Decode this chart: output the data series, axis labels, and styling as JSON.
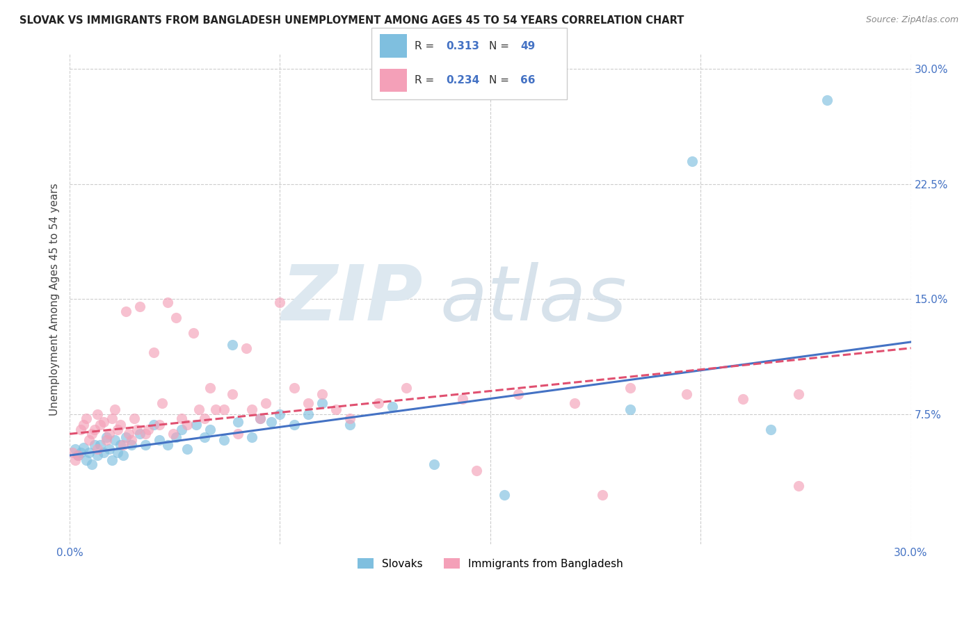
{
  "title": "SLOVAK VS IMMIGRANTS FROM BANGLADESH UNEMPLOYMENT AMONG AGES 45 TO 54 YEARS CORRELATION CHART",
  "source": "Source: ZipAtlas.com",
  "ylabel": "Unemployment Among Ages 45 to 54 years",
  "xlim": [
    0.0,
    0.3
  ],
  "ylim": [
    -0.01,
    0.31
  ],
  "xtick_vals": [
    0.0,
    0.075,
    0.15,
    0.225,
    0.3
  ],
  "xtick_labels": [
    "0.0%",
    "",
    "",
    "",
    "30.0%"
  ],
  "ytick_vals": [
    0.075,
    0.15,
    0.225,
    0.3
  ],
  "ytick_labels": [
    "7.5%",
    "15.0%",
    "22.5%",
    "30.0%"
  ],
  "legend_label1": "Slovaks",
  "legend_label2": "Immigrants from Bangladesh",
  "R1": "0.313",
  "N1": "49",
  "R2": "0.234",
  "N2": "66",
  "color1": "#7fbfdf",
  "color2": "#f4a0b8",
  "line_color1": "#4472c4",
  "line_color2": "#e05070",
  "background_color": "#ffffff",
  "slovaks_x": [
    0.002,
    0.003,
    0.004,
    0.005,
    0.006,
    0.007,
    0.008,
    0.009,
    0.01,
    0.011,
    0.012,
    0.013,
    0.014,
    0.015,
    0.016,
    0.017,
    0.018,
    0.019,
    0.02,
    0.022,
    0.025,
    0.027,
    0.03,
    0.032,
    0.035,
    0.038,
    0.04,
    0.042,
    0.045,
    0.048,
    0.05,
    0.055,
    0.058,
    0.06,
    0.065,
    0.068,
    0.072,
    0.075,
    0.08,
    0.085,
    0.09,
    0.1,
    0.115,
    0.13,
    0.155,
    0.2,
    0.222,
    0.25,
    0.27
  ],
  "slovaks_y": [
    0.052,
    0.048,
    0.05,
    0.053,
    0.045,
    0.05,
    0.042,
    0.055,
    0.048,
    0.055,
    0.05,
    0.06,
    0.052,
    0.045,
    0.058,
    0.05,
    0.055,
    0.048,
    0.06,
    0.055,
    0.062,
    0.055,
    0.068,
    0.058,
    0.055,
    0.06,
    0.065,
    0.052,
    0.068,
    0.06,
    0.065,
    0.058,
    0.12,
    0.07,
    0.06,
    0.072,
    0.07,
    0.075,
    0.068,
    0.075,
    0.082,
    0.068,
    0.08,
    0.042,
    0.022,
    0.078,
    0.24,
    0.065,
    0.28
  ],
  "bangladesh_x": [
    0.001,
    0.002,
    0.003,
    0.004,
    0.005,
    0.006,
    0.007,
    0.008,
    0.009,
    0.01,
    0.01,
    0.011,
    0.012,
    0.013,
    0.014,
    0.015,
    0.016,
    0.017,
    0.018,
    0.019,
    0.02,
    0.021,
    0.022,
    0.023,
    0.024,
    0.025,
    0.027,
    0.028,
    0.03,
    0.032,
    0.033,
    0.035,
    0.037,
    0.038,
    0.04,
    0.042,
    0.044,
    0.046,
    0.048,
    0.05,
    0.052,
    0.055,
    0.058,
    0.06,
    0.063,
    0.065,
    0.068,
    0.07,
    0.075,
    0.08,
    0.085,
    0.09,
    0.095,
    0.1,
    0.11,
    0.12,
    0.14,
    0.16,
    0.18,
    0.2,
    0.22,
    0.24,
    0.26,
    0.145,
    0.19,
    0.26
  ],
  "bangladesh_y": [
    0.05,
    0.045,
    0.048,
    0.065,
    0.068,
    0.072,
    0.058,
    0.062,
    0.065,
    0.075,
    0.052,
    0.068,
    0.07,
    0.058,
    0.062,
    0.072,
    0.078,
    0.065,
    0.068,
    0.055,
    0.142,
    0.062,
    0.058,
    0.072,
    0.065,
    0.145,
    0.062,
    0.065,
    0.115,
    0.068,
    0.082,
    0.148,
    0.062,
    0.138,
    0.072,
    0.068,
    0.128,
    0.078,
    0.072,
    0.092,
    0.078,
    0.078,
    0.088,
    0.062,
    0.118,
    0.078,
    0.072,
    0.082,
    0.148,
    0.092,
    0.082,
    0.088,
    0.078,
    0.072,
    0.082,
    0.092,
    0.085,
    0.088,
    0.082,
    0.092,
    0.088,
    0.085,
    0.088,
    0.038,
    0.022,
    0.028
  ],
  "line1_x0": 0.0,
  "line1_x1": 0.3,
  "line1_y0": 0.048,
  "line1_y1": 0.122,
  "line2_x0": 0.0,
  "line2_x1": 0.3,
  "line2_y0": 0.062,
  "line2_y1": 0.118
}
